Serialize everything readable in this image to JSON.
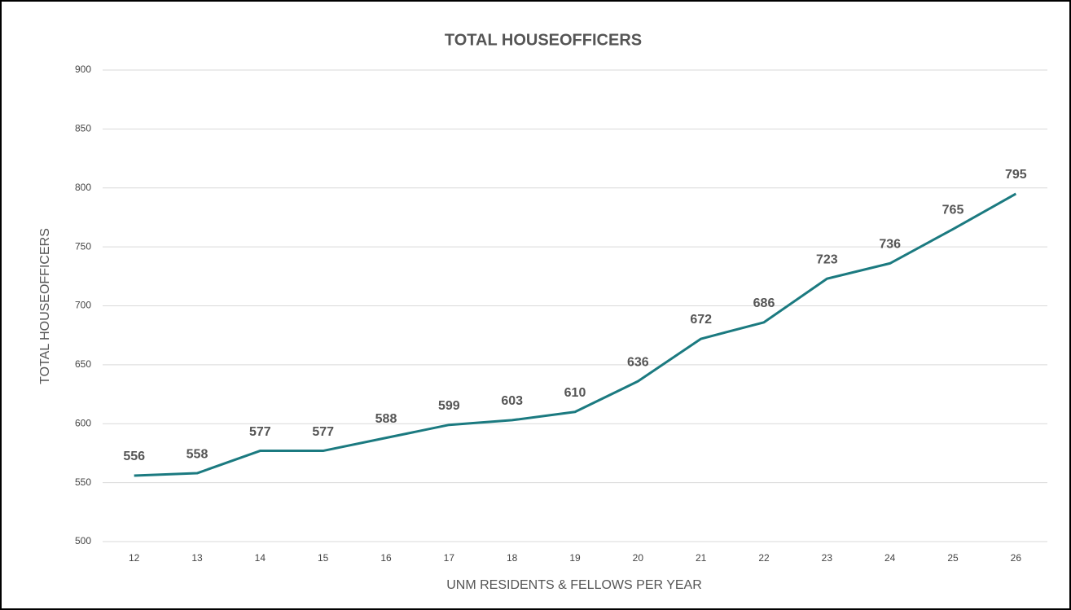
{
  "chart_data": {
    "type": "line",
    "title": "TOTAL HOUSEOFFICERS",
    "x_label": "UNM RESIDENTS & FELLOWS PER YEAR",
    "y_label": "TOTAL HOUSEOFFICERS",
    "categories": [
      "12",
      "13",
      "14",
      "15",
      "16",
      "17",
      "18",
      "19",
      "20",
      "21",
      "22",
      "23",
      "24",
      "25",
      "26"
    ],
    "values": [
      556,
      558,
      577,
      577,
      588,
      599,
      603,
      610,
      636,
      672,
      686,
      723,
      736,
      765,
      795
    ],
    "color": "#1b7a80",
    "ylim": [
      500,
      900
    ],
    "yticks": [
      500,
      550,
      600,
      650,
      700,
      750,
      800,
      850,
      900
    ],
    "grid": true
  }
}
